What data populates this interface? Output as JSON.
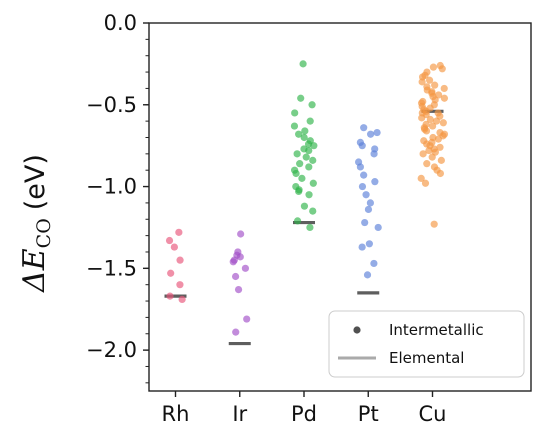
{
  "chart_data": {
    "type": "scatter",
    "ylabel_symbol": "ΔE",
    "ylabel_subscript": "CO",
    "ylabel_unit": "(eV)",
    "xlabel": "",
    "title": "",
    "categories": [
      "Rh",
      "Ir",
      "Pd",
      "Pt",
      "Cu"
    ],
    "ylim": [
      -2.25,
      0.0
    ],
    "yticks": [
      0.0,
      -0.5,
      -1.0,
      -1.5,
      -2.0
    ],
    "ytick_labels": [
      "0.0",
      "−0.5",
      "−1.0",
      "−1.5",
      "−2.0"
    ],
    "grid": false,
    "legend": {
      "placement": "bottom-right",
      "entries": [
        {
          "label": "Intermetallic",
          "marker": "dot"
        },
        {
          "label": "Elemental",
          "marker": "line"
        }
      ]
    },
    "series": [
      {
        "category": "Rh",
        "color": "#e8557a",
        "intermetallic": [
          -1.28,
          -1.33,
          -1.37,
          -1.45,
          -1.53,
          -1.6,
          -1.67,
          -1.69
        ],
        "elemental": -1.67
      },
      {
        "category": "Ir",
        "color": "#a24fc8",
        "intermetallic": [
          -1.29,
          -1.4,
          -1.42,
          -1.43,
          -1.45,
          -1.46,
          -1.5,
          -1.55,
          -1.63,
          -1.81,
          -1.89
        ],
        "elemental": -1.96
      },
      {
        "category": "Pd",
        "color": "#2fb34a",
        "intermetallic": [
          -0.25,
          -0.46,
          -0.5,
          -0.55,
          -0.6,
          -0.63,
          -0.66,
          -0.68,
          -0.7,
          -0.72,
          -0.74,
          -0.75,
          -0.77,
          -0.78,
          -0.8,
          -0.82,
          -0.84,
          -0.86,
          -0.88,
          -0.9,
          -0.92,
          -0.95,
          -0.98,
          -1.0,
          -1.02,
          -1.03,
          -1.05,
          -1.12,
          -1.15,
          -1.21,
          -1.25
        ],
        "elemental": -1.22
      },
      {
        "category": "Pt",
        "color": "#5b80d8",
        "intermetallic": [
          -0.64,
          -0.67,
          -0.68,
          -0.73,
          -0.75,
          -0.77,
          -0.8,
          -0.85,
          -0.88,
          -0.93,
          -0.97,
          -1.0,
          -1.05,
          -1.1,
          -1.14,
          -1.22,
          -1.25,
          -1.35,
          -1.37,
          -1.47,
          -1.54
        ],
        "elemental": -1.65
      },
      {
        "category": "Cu",
        "color": "#f59742",
        "intermetallic": [
          -0.26,
          -0.27,
          -0.28,
          -0.3,
          -0.32,
          -0.33,
          -0.35,
          -0.36,
          -0.38,
          -0.39,
          -0.4,
          -0.41,
          -0.42,
          -0.43,
          -0.44,
          -0.45,
          -0.46,
          -0.47,
          -0.48,
          -0.49,
          -0.5,
          -0.51,
          -0.52,
          -0.53,
          -0.54,
          -0.55,
          -0.55,
          -0.56,
          -0.57,
          -0.58,
          -0.59,
          -0.6,
          -0.61,
          -0.62,
          -0.63,
          -0.64,
          -0.65,
          -0.66,
          -0.67,
          -0.68,
          -0.69,
          -0.7,
          -0.71,
          -0.72,
          -0.73,
          -0.74,
          -0.75,
          -0.76,
          -0.77,
          -0.78,
          -0.79,
          -0.8,
          -0.82,
          -0.84,
          -0.86,
          -0.88,
          -0.9,
          -0.92,
          -0.95,
          -0.98,
          -1.23
        ],
        "elemental": -0.54
      }
    ]
  }
}
